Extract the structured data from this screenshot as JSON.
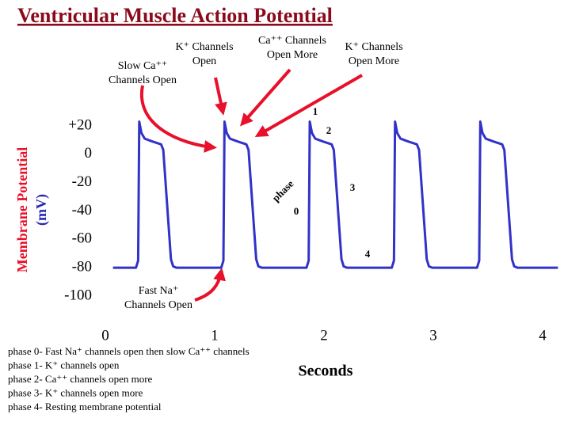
{
  "chart_data": {
    "type": "line",
    "title": "Ventricular Muscle Action Potential",
    "x_label": "Seconds",
    "y_label": "Membrane Potential",
    "y_unit": "(mV)",
    "xlim": [
      0,
      4.14
    ],
    "xticks": [
      0,
      1,
      2,
      3,
      4
    ],
    "ylim": [
      -100,
      20
    ],
    "yticks": [
      {
        "value": 20,
        "label": "+20"
      },
      0,
      -20,
      -40,
      -60,
      -80,
      -100
    ],
    "series": [
      {
        "name": "Action potential",
        "color": "#3232c8",
        "x": [
          0.07,
          0.28,
          0.3,
          0.31,
          0.33,
          0.36,
          0.43,
          0.51,
          0.53,
          0.6,
          0.62,
          0.65,
          1.06,
          1.08,
          1.09,
          1.11,
          1.14,
          1.21,
          1.29,
          1.31,
          1.38,
          1.4,
          1.43,
          1.84,
          1.86,
          1.87,
          1.89,
          1.92,
          1.99,
          2.07,
          2.09,
          2.16,
          2.18,
          2.21,
          2.62,
          2.64,
          2.65,
          2.67,
          2.7,
          2.77,
          2.85,
          2.87,
          2.94,
          2.96,
          2.99,
          3.4,
          3.42,
          3.43,
          3.45,
          3.48,
          3.55,
          3.63,
          3.65,
          3.72,
          3.74,
          3.77,
          4.14
        ],
        "values": [
          -80,
          -80,
          -75,
          23,
          15,
          11,
          9,
          7,
          3,
          -74,
          -79,
          -80,
          -80,
          -75,
          23,
          15,
          11,
          9,
          7,
          3,
          -74,
          -79,
          -80,
          -80,
          -75,
          23,
          15,
          11,
          9,
          7,
          3,
          -74,
          -79,
          -80,
          -80,
          -75,
          23,
          15,
          11,
          9,
          7,
          3,
          -74,
          -79,
          -80,
          -80,
          -75,
          23,
          15,
          11,
          9,
          7,
          3,
          -74,
          -79,
          -80,
          -80
        ]
      }
    ],
    "annotations": [
      {
        "lines": [
          "Slow  Ca⁺⁺",
          "Channels Open"
        ]
      },
      {
        "lines": [
          "K⁺  Channels",
          "Open"
        ]
      },
      {
        "lines": [
          "Ca⁺⁺ Channels",
          "Open More"
        ]
      },
      {
        "lines": [
          "K⁺  Channels",
          "Open More"
        ]
      },
      {
        "lines": [
          "Fast Na⁺",
          "Channels Open"
        ]
      }
    ],
    "phase_labels": [
      "1",
      "2",
      "3",
      "4",
      "0",
      "phase"
    ],
    "notes": [
      "phase 0- Fast Na⁺ channels open then slow Ca⁺⁺ channels",
      "phase 1- K⁺ channels open",
      "phase 2- Ca⁺⁺ channels open more",
      "phase 3- K⁺ channels open more",
      "phase 4- Resting membrane potential"
    ]
  }
}
